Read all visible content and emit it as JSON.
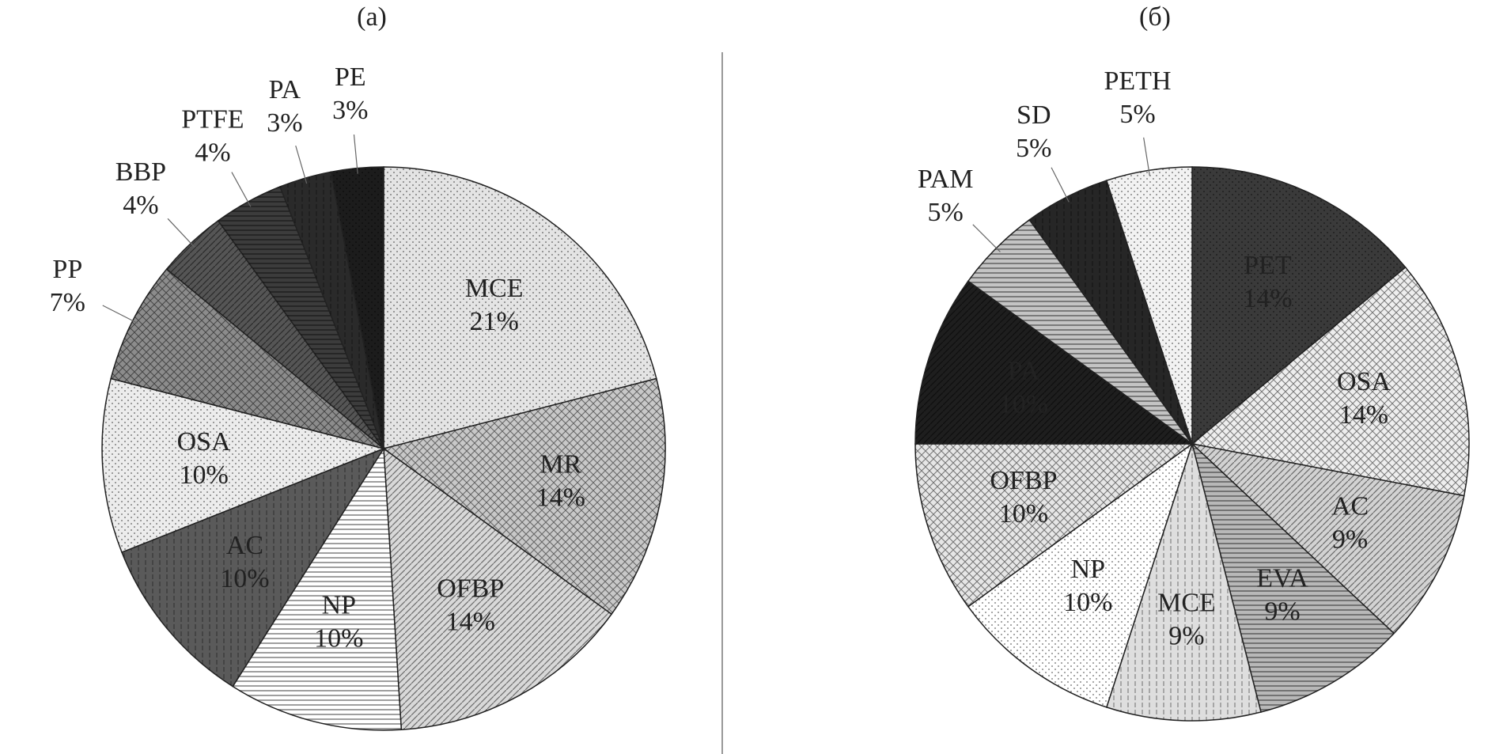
{
  "chart_data": [
    {
      "type": "pie",
      "title": "(a)",
      "categories": [
        "MCE",
        "MR",
        "OFBP",
        "NP",
        "AC",
        "OSA",
        "PP",
        "BBP",
        "PTFE",
        "PA",
        "PE"
      ],
      "values": [
        21,
        14,
        14,
        10,
        10,
        10,
        7,
        4,
        4,
        3,
        3
      ],
      "value_labels": [
        "21%",
        "14%",
        "14%",
        "10%",
        "10%",
        "10%",
        "7%",
        "4%",
        "4%",
        "3%",
        "3%"
      ],
      "colors": [
        "#e4e4e4",
        "#c8c8c8",
        "#d8d8d8",
        "#ffffff",
        "#5a5a5a",
        "#ececec",
        "#8c8c8c",
        "#555555",
        "#3c3c3c",
        "#2a2a2a",
        "#1c1c1c"
      ]
    },
    {
      "type": "pie",
      "title": "(б)",
      "categories": [
        "PET",
        "OSA",
        "AC",
        "EVA",
        "MCE",
        "NP",
        "OFBP",
        "PA",
        "PAM",
        "SD",
        "PETH"
      ],
      "values": [
        14,
        14,
        9,
        9,
        9,
        10,
        10,
        10,
        5,
        5,
        5
      ],
      "value_labels": [
        "14%",
        "14%",
        "9%",
        "9%",
        "9%",
        "10%",
        "10%",
        "10%",
        "5%",
        "5%",
        "5%"
      ],
      "colors": [
        "#3a3a3a",
        "#eeeeee",
        "#d2d2d2",
        "#b8b8b8",
        "#dedede",
        "#ffffff",
        "#e6e6e6",
        "#1e1e1e",
        "#c4c4c4",
        "#262626",
        "#f2f2f2"
      ]
    }
  ]
}
